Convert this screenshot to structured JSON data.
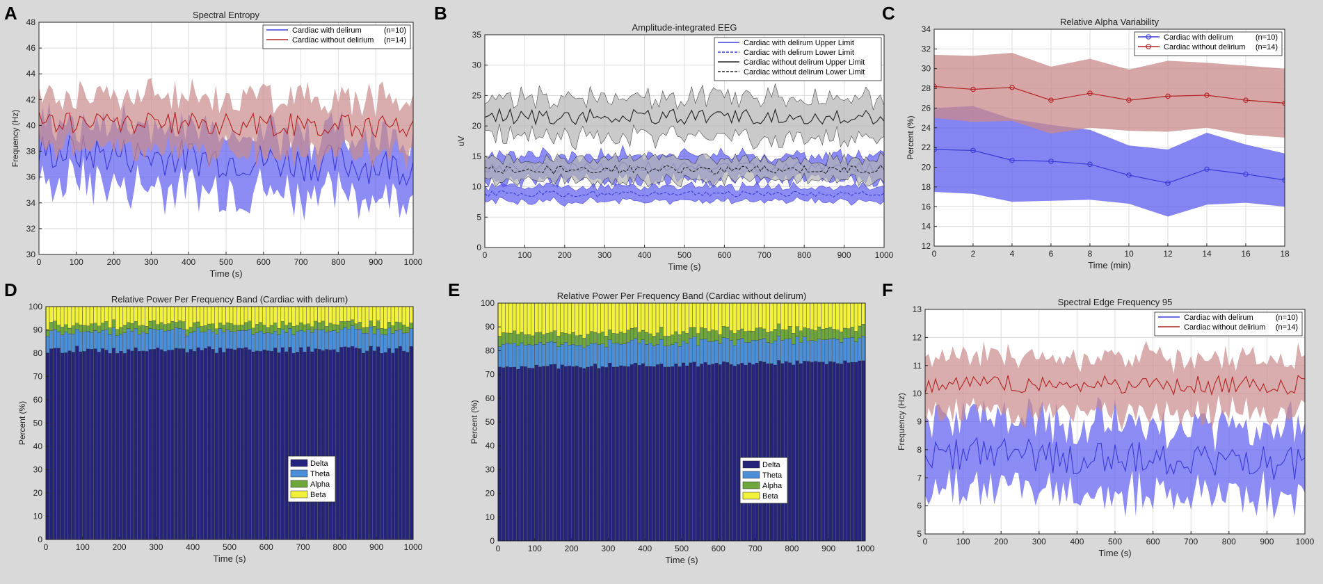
{
  "figure": {
    "background": "#d9d9d9"
  },
  "colors": {
    "blue_line": "#3a3ad8",
    "blue_fill": "#5b5bef",
    "red_line": "#b22222",
    "red_fill": "#c98a8a",
    "black_line": "#222222",
    "gray_fill": "#b4b4b4",
    "delta": "#24247a",
    "theta": "#4a8fd8",
    "alpha": "#6ea83c",
    "beta": "#f2f23a"
  },
  "chart_data": [
    {
      "id": "A",
      "panel_letter": "A",
      "type": "line",
      "title": "Spectral Entropy",
      "xlabel": "Time (s)",
      "ylabel": "Frequency (Hz)",
      "xlim": [
        0,
        1000
      ],
      "ylim": [
        30,
        48
      ],
      "xticks": [
        "0",
        "100",
        "200",
        "300",
        "400",
        "500",
        "600",
        "700",
        "800",
        "900",
        "1000"
      ],
      "yticks": [
        "30",
        "32",
        "34",
        "36",
        "38",
        "40",
        "42",
        "44",
        "46",
        "48"
      ],
      "legend": {
        "position": "top-right",
        "entries": [
          {
            "label": "Cardiac with delirum",
            "n": "(n=10)",
            "color": "#3a3ad8",
            "style": "solid"
          },
          {
            "label": "Cardiac without delirium",
            "n": "(n=14)",
            "color": "#b22222",
            "style": "solid"
          }
        ]
      },
      "series": [
        {
          "name": "Cardiac with delirum",
          "mean": 38.0,
          "spread": 2.3,
          "noise": 1.5,
          "trend": -1.2,
          "color": "#3a3ad8",
          "fill": "#5b5bef"
        },
        {
          "name": "Cardiac without delirium",
          "mean": 40.3,
          "spread": 2.2,
          "noise": 0.9,
          "trend": -0.4,
          "color": "#b22222",
          "fill": "#c98a8a"
        }
      ]
    },
    {
      "id": "B",
      "panel_letter": "B",
      "type": "line",
      "title": "Amplitude-integrated EEG",
      "xlabel": "Time (s)",
      "ylabel": "uV",
      "xlim": [
        0,
        1000
      ],
      "ylim": [
        0,
        35
      ],
      "xticks": [
        "0",
        "100",
        "200",
        "300",
        "400",
        "500",
        "600",
        "700",
        "800",
        "900",
        "1000"
      ],
      "yticks": [
        "0",
        "5",
        "10",
        "15",
        "20",
        "25",
        "30",
        "35"
      ],
      "legend": {
        "position": "top-right",
        "entries": [
          {
            "label": "Cardiac with delirum Upper Limit",
            "color": "#3a3ad8",
            "style": "solid"
          },
          {
            "label": "Cardiac with delirum Lower Limit",
            "color": "#3a3ad8",
            "style": "dashed"
          },
          {
            "label": "Cardiac without delirum Upper Limit",
            "color": "#222222",
            "style": "solid"
          },
          {
            "label": "Cardiac without delirum Lower Limit",
            "color": "#222222",
            "style": "dashed"
          }
        ]
      },
      "series": [
        {
          "name": "Cardiac without delirum Upper Limit",
          "mean": 21.5,
          "spread": 3.2,
          "noise": 1.3,
          "color": "#222222",
          "fill": "#b4b4b4"
        },
        {
          "name": "Cardiac with delirum Upper Limit",
          "mean": 13.2,
          "spread": 2.0,
          "noise": 0.9,
          "color": "#3a3ad8",
          "fill": "#5b5bef"
        },
        {
          "name": "Cardiac without delirum Lower Limit",
          "mean": 12.8,
          "spread": 1.8,
          "noise": 0.7,
          "color": "#222222",
          "fill": "#b4b4b4",
          "dashed": true
        },
        {
          "name": "Cardiac with delirum Lower Limit",
          "mean": 8.8,
          "spread": 1.2,
          "noise": 0.5,
          "color": "#3a3ad8",
          "fill": "#5b5bef",
          "dashed": true
        }
      ]
    },
    {
      "id": "C",
      "panel_letter": "C",
      "type": "line",
      "title": "Relative Alpha Variability",
      "xlabel": "Time (min)",
      "ylabel": "Percent (%)",
      "xlim": [
        0,
        18
      ],
      "ylim": [
        12,
        34
      ],
      "xticks": [
        "0",
        "2",
        "4",
        "6",
        "8",
        "10",
        "12",
        "14",
        "16",
        "18"
      ],
      "yticks": [
        "12",
        "14",
        "16",
        "18",
        "20",
        "22",
        "24",
        "26",
        "28",
        "30",
        "32",
        "34"
      ],
      "legend": {
        "position": "top-right",
        "entries": [
          {
            "label": "Cardiac with delirum",
            "n": "(n=10)",
            "color": "#3a3ad8",
            "style": "marker"
          },
          {
            "label": "Cardiac without delirium",
            "n": "(n=14)",
            "color": "#b22222",
            "style": "marker"
          }
        ]
      },
      "series": [
        {
          "name": "Cardiac with delirum",
          "color": "#3a3ad8",
          "fill": "#5b5bef",
          "x": [
            0,
            2,
            4,
            6,
            8,
            10,
            12,
            14,
            16,
            18
          ],
          "values": [
            21.8,
            21.7,
            20.7,
            20.6,
            20.3,
            19.2,
            18.4,
            19.8,
            19.3,
            18.7
          ],
          "upper": [
            26.0,
            26.2,
            24.9,
            24.3,
            23.8,
            22.2,
            21.8,
            23.5,
            22.3,
            21.4
          ],
          "lower": [
            17.5,
            17.3,
            16.5,
            16.6,
            16.7,
            16.3,
            15.0,
            16.2,
            16.4,
            16.0
          ]
        },
        {
          "name": "Cardiac without delirium",
          "color": "#b22222",
          "fill": "#c98a8a",
          "x": [
            0,
            2,
            4,
            6,
            8,
            10,
            12,
            14,
            16,
            18
          ],
          "values": [
            28.2,
            27.9,
            28.1,
            26.8,
            27.5,
            26.8,
            27.2,
            27.3,
            26.8,
            26.5
          ],
          "upper": [
            31.4,
            31.3,
            31.6,
            30.2,
            31.0,
            29.9,
            30.8,
            30.6,
            30.3,
            30.0
          ],
          "lower": [
            25.0,
            24.6,
            24.7,
            23.4,
            24.0,
            23.7,
            23.6,
            24.0,
            23.3,
            23.0
          ]
        }
      ]
    },
    {
      "id": "D",
      "panel_letter": "D",
      "type": "bar",
      "title": "Relative Power Per Frequency Band (Cardiac with delirum)",
      "xlabel": "Time (s)",
      "ylabel": "Percent (%)",
      "xlim": [
        0,
        1000
      ],
      "ylim": [
        0,
        100
      ],
      "xticks": [
        "0",
        "100",
        "200",
        "300",
        "400",
        "500",
        "600",
        "700",
        "800",
        "900",
        "1000"
      ],
      "yticks": [
        "0",
        "10",
        "20",
        "30",
        "40",
        "50",
        "60",
        "70",
        "80",
        "90",
        "100"
      ],
      "legend": {
        "position": "bottom-right",
        "entries": [
          {
            "label": "Delta",
            "color": "#24247a"
          },
          {
            "label": "Theta",
            "color": "#4a8fd8"
          },
          {
            "label": "Alpha",
            "color": "#6ea83c"
          },
          {
            "label": "Beta",
            "color": "#f2f23a"
          }
        ]
      },
      "stack": {
        "bins": 100,
        "delta": 81.5,
        "theta": 8.0,
        "alpha": 3.0,
        "noise": 1.6
      }
    },
    {
      "id": "E",
      "panel_letter": "E",
      "type": "bar",
      "title": "Relative Power Per Frequency Band (Cardiac without delirum)",
      "xlabel": "Time (s)",
      "ylabel": "Percent (%)",
      "xlim": [
        0,
        1000
      ],
      "ylim": [
        0,
        100
      ],
      "xticks": [
        "0",
        "100",
        "200",
        "300",
        "400",
        "500",
        "600",
        "700",
        "800",
        "900",
        "1000"
      ],
      "yticks": [
        "0",
        "10",
        "20",
        "30",
        "40",
        "50",
        "60",
        "70",
        "80",
        "90",
        "100"
      ],
      "legend": {
        "position": "bottom-right",
        "entries": [
          {
            "label": "Delta",
            "color": "#24247a"
          },
          {
            "label": "Theta",
            "color": "#4a8fd8"
          },
          {
            "label": "Alpha",
            "color": "#6ea83c"
          },
          {
            "label": "Beta",
            "color": "#f2f23a"
          }
        ]
      },
      "stack": {
        "bins": 100,
        "delta": 73.0,
        "theta": 9.5,
        "alpha": 4.5,
        "noise": 1.1,
        "trend": 2.5
      }
    },
    {
      "id": "F",
      "panel_letter": "F",
      "type": "line",
      "title": "Spectral Edge Frequency 95",
      "xlabel": "Time (s)",
      "ylabel": "Frequency (Hz)",
      "xlim": [
        0,
        1000
      ],
      "ylim": [
        5,
        13
      ],
      "xticks": [
        "0",
        "100",
        "200",
        "300",
        "400",
        "500",
        "600",
        "700",
        "800",
        "900",
        "1000"
      ],
      "yticks": [
        "5",
        "6",
        "7",
        "8",
        "9",
        "10",
        "11",
        "12",
        "13"
      ],
      "legend": {
        "position": "top-right",
        "entries": [
          {
            "label": "Cardiac with delirum",
            "n": "(n=10)",
            "color": "#3a3ad8",
            "style": "solid"
          },
          {
            "label": "Cardiac without delirium",
            "n": "(n=14)",
            "color": "#b22222",
            "style": "solid"
          }
        ]
      },
      "series": [
        {
          "name": "Cardiac with delirum",
          "mean": 7.9,
          "spread": 1.25,
          "noise": 0.6,
          "trend": -0.4,
          "color": "#3a3ad8",
          "fill": "#5b5bef"
        },
        {
          "name": "Cardiac without delirium",
          "mean": 10.3,
          "spread": 1.0,
          "noise": 0.35,
          "trend": 0.0,
          "color": "#b22222",
          "fill": "#c98a8a"
        }
      ]
    }
  ]
}
